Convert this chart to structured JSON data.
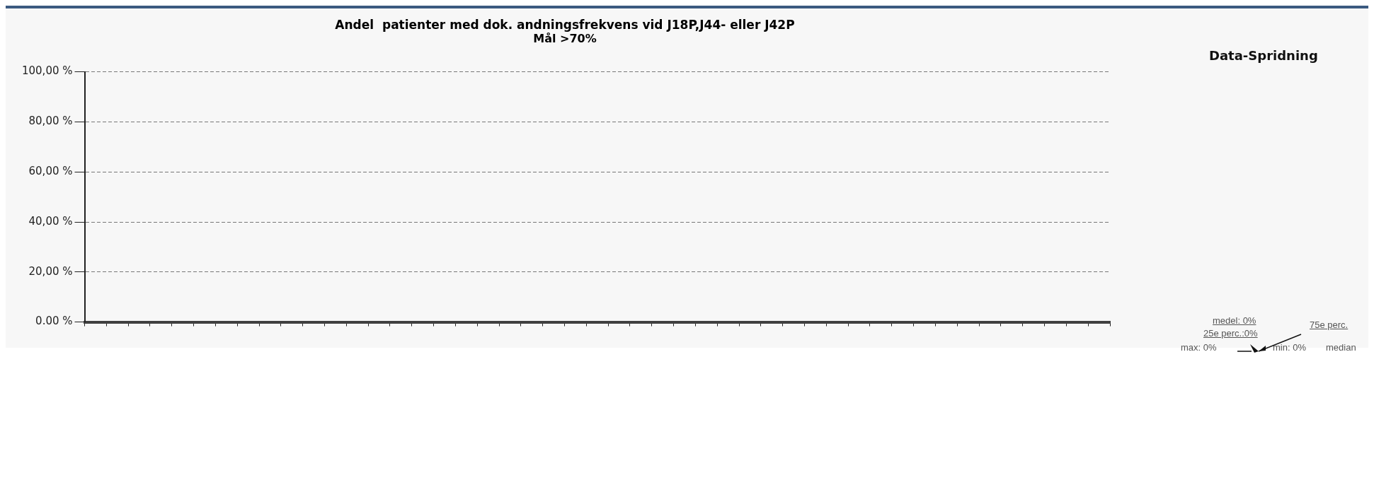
{
  "chart_data": {
    "type": "bar",
    "title": "Andel  patienter med dok. andningsfrekvens vid J18P,J44- eller J42P",
    "subtitle": "Mål >70%",
    "categories": [
      null,
      null,
      null,
      null,
      null,
      null,
      null,
      null,
      null,
      null,
      null,
      null,
      null,
      null,
      null,
      null,
      null,
      null,
      null,
      null,
      null,
      null,
      null,
      null,
      null,
      null,
      null,
      null,
      null,
      null,
      null,
      null,
      null,
      null,
      null,
      null,
      null,
      null,
      null,
      null,
      null,
      null,
      null,
      null,
      null,
      null,
      null
    ],
    "values": [
      0,
      0,
      0,
      0,
      0,
      0,
      0,
      0,
      0,
      0,
      0,
      0,
      0,
      0,
      0,
      0,
      0,
      0,
      0,
      0,
      0,
      0,
      0,
      0,
      0,
      0,
      0,
      0,
      0,
      0,
      0,
      0,
      0,
      0,
      0,
      0,
      0,
      0,
      0,
      0,
      0,
      0,
      0,
      0,
      0,
      0,
      0
    ],
    "color": "#404040",
    "ylim": [
      0,
      100
    ],
    "yticks": [
      {
        "value": 0,
        "label": "0.00 %"
      },
      {
        "value": 20,
        "label": "20,00 %"
      },
      {
        "value": 40,
        "label": "40,00 %"
      },
      {
        "value": 60,
        "label": "60,00 %"
      },
      {
        "value": 80,
        "label": "80,00 %"
      },
      {
        "value": 100,
        "label": "100,00 %"
      }
    ],
    "grid": "y",
    "legend": false,
    "annotations": [
      "Data-Spridning",
      "medel: 0%",
      "25e perc.:0%",
      "75e perc.",
      "max: 0%",
      "min: 0%",
      "median"
    ]
  }
}
